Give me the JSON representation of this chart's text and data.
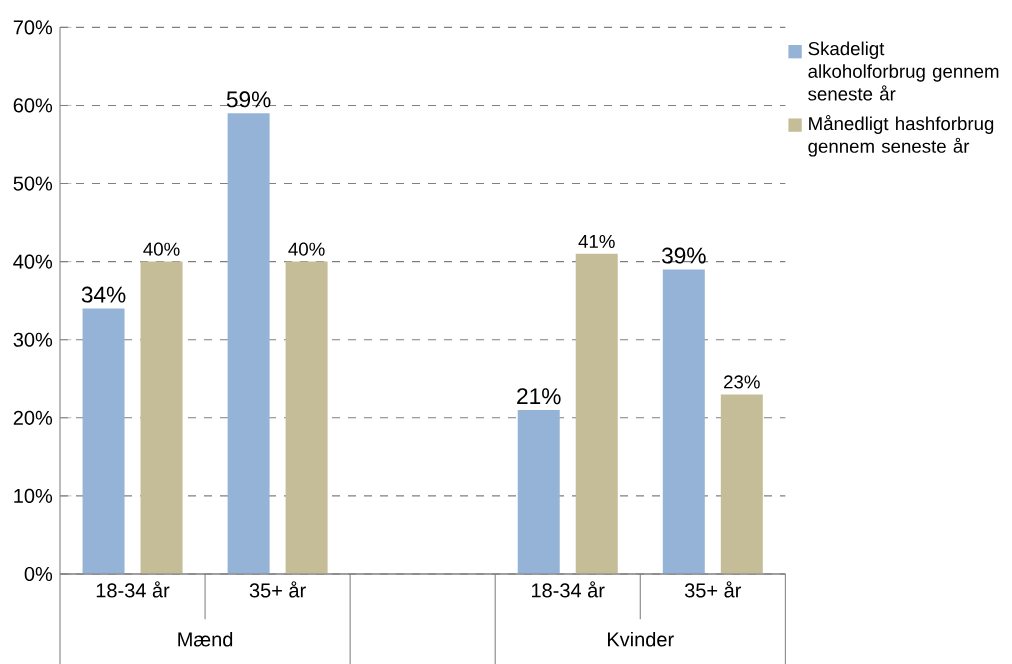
{
  "chart_data": {
    "type": "bar",
    "categories": [
      "18-34 år",
      "35+ år",
      null,
      "18-34 år",
      "35+ år"
    ],
    "series": [
      {
        "name": "Skadeligt alkoholforbrug gennem seneste år",
        "color": "#95b3d7",
        "values": [
          34,
          59,
          null,
          21,
          39
        ],
        "value_labels": [
          "34%",
          "59%",
          null,
          "21%",
          "39%"
        ]
      },
      {
        "name": "Månedligt hashforbrug gennem seneste år",
        "color": "#c4bd97",
        "values": [
          40,
          40,
          null,
          41,
          23
        ],
        "value_labels": [
          "40%",
          "40%",
          null,
          "41%",
          "23%"
        ]
      }
    ],
    "ylim": [
      0,
      70
    ],
    "yticks": [
      {
        "value": 0,
        "label": "0%"
      },
      {
        "value": 10,
        "label": "10%"
      },
      {
        "value": 20,
        "label": "20%"
      },
      {
        "value": 30,
        "label": "30%"
      },
      {
        "value": 40,
        "label": "40%"
      },
      {
        "value": 50,
        "label": "50%"
      },
      {
        "value": 60,
        "label": "60%"
      },
      {
        "value": 70,
        "label": "70%"
      }
    ],
    "grid": "y",
    "legend": "top right",
    "annotations": [
      "Mænd",
      "Kvinder"
    ]
  }
}
